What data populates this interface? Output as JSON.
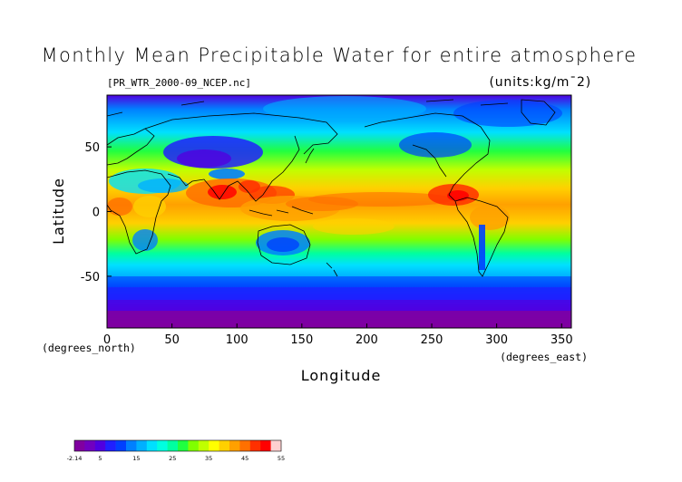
{
  "title": "Monthly Mean Precipitable Water for entire atmosphere",
  "file_label": "[PR_WTR_2000-09_NCEP.nc]",
  "units_label": "(units:kg/m¯2)",
  "x_axis": {
    "label": "Longitude",
    "unit_note": "(degrees_east)",
    "range": [
      0,
      357.5
    ],
    "ticks": [
      0,
      50,
      100,
      150,
      200,
      250,
      300,
      350
    ]
  },
  "y_axis": {
    "label": "Latitude",
    "unit_note": "(degrees_north)",
    "range": [
      -90,
      90
    ],
    "ticks": [
      50,
      0,
      -50
    ]
  },
  "colorbar": {
    "min": -2.14,
    "max": 55,
    "ticks": [
      "-2.14",
      "5",
      "15",
      "25",
      "35",
      "45",
      "55"
    ],
    "tick_values": [
      -2.14,
      5,
      15,
      25,
      35,
      45,
      55
    ],
    "palette": [
      "#8000a0",
      "#7000c0",
      "#5000e0",
      "#2020ff",
      "#0040ff",
      "#0080ff",
      "#00b0ff",
      "#00e0ff",
      "#00ffe0",
      "#00ffa0",
      "#20ff40",
      "#80ff00",
      "#c0ff00",
      "#ffff00",
      "#ffd000",
      "#ffa000",
      "#ff7000",
      "#ff3000",
      "#ff0000",
      "#ffd0d0"
    ]
  },
  "map": {
    "type": "filled-contour",
    "variable": "precipitable water",
    "coastlines": true
  }
}
